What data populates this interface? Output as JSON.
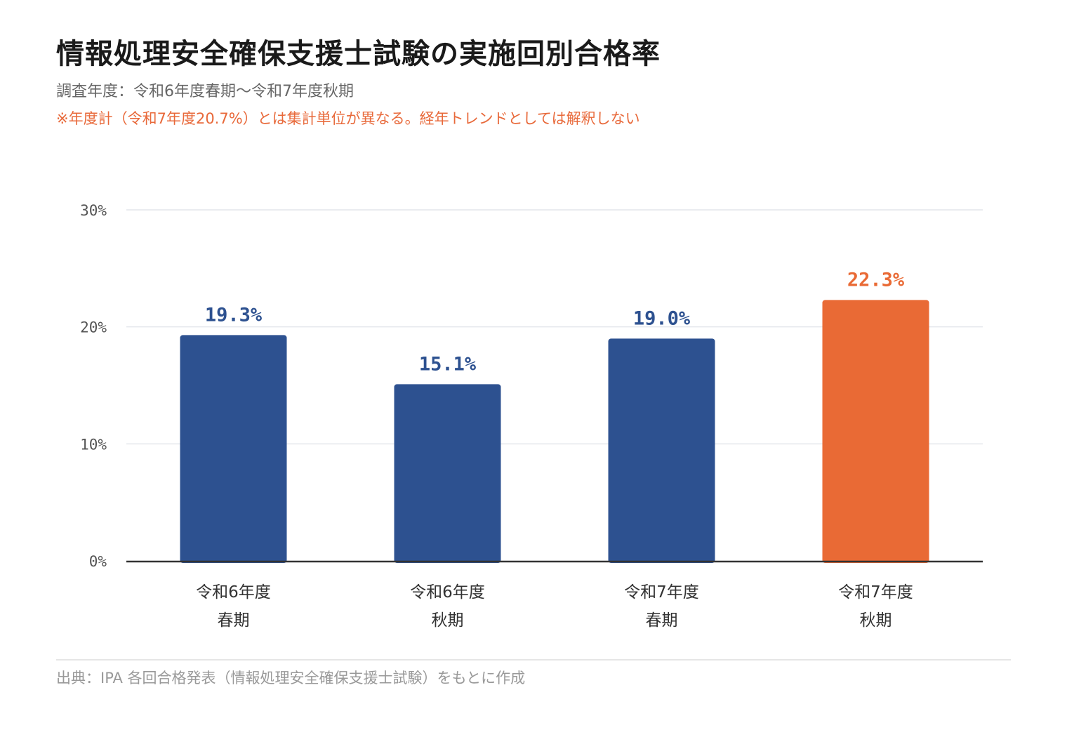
{
  "header": {
    "title": "情報処理安全確保支援士試験の実施回別合格率",
    "subtitle": "調査年度：令和6年度春期〜令和7年度秋期",
    "note": "※年度計（令和7年度20.7%）とは集計単位が異なる。経年トレンドとしては解釈しない"
  },
  "footer": {
    "source": "出典：IPA 各回合格発表（情報処理安全確保支援士試験）をもとに作成"
  },
  "chart_data": {
    "type": "bar",
    "categories": [
      [
        "令和6年度",
        "春期"
      ],
      [
        "令和6年度",
        "秋期"
      ],
      [
        "令和7年度",
        "春期"
      ],
      [
        "令和7年度",
        "秋期"
      ]
    ],
    "values": [
      19.3,
      15.1,
      19.0,
      22.3
    ],
    "value_labels": [
      "19.3%",
      "15.1%",
      "19.0%",
      "22.3%"
    ],
    "highlight_index": 3,
    "ylim": [
      0,
      30
    ],
    "yticks": [
      0,
      10,
      20,
      30
    ],
    "ytick_labels": [
      "0%",
      "10%",
      "20%",
      "30%"
    ],
    "xlabel": "",
    "ylabel": "",
    "grid": true,
    "colors": {
      "bar": "#2d5190",
      "highlight": "#e96a35",
      "grid": "#e4e6ec",
      "axis": "#333333",
      "tick_label": "#555555",
      "category_label": "#333333"
    }
  }
}
